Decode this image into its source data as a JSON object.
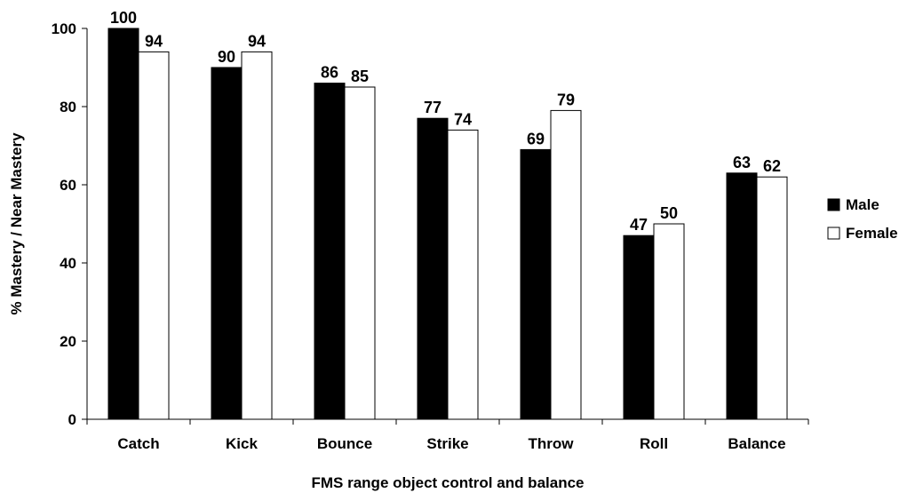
{
  "chart_data": {
    "type": "bar",
    "categories": [
      "Catch",
      "Kick",
      "Bounce",
      "Strike",
      "Throw",
      "Roll",
      "Balance"
    ],
    "series": [
      {
        "name": "Male",
        "values": [
          100,
          90,
          86,
          77,
          69,
          47,
          63
        ],
        "color": "#000000"
      },
      {
        "name": "Female",
        "values": [
          94,
          94,
          85,
          74,
          79,
          50,
          62
        ],
        "color": "#ffffff"
      }
    ],
    "title": "",
    "xlabel": "FMS range object control and balance",
    "ylabel": "% Mastery / Near Mastery",
    "ylim": [
      0,
      100
    ],
    "yticks": [
      0,
      20,
      40,
      60,
      80,
      100
    ],
    "grid": false,
    "legend_position": "right",
    "data_labels": true
  }
}
